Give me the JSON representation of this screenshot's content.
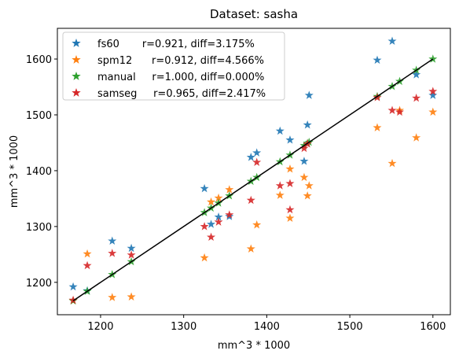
{
  "chart_data": {
    "type": "scatter",
    "title": "Dataset: sasha",
    "xlabel": "mm^3 * 1000",
    "ylabel": "mm^3 * 1000",
    "xlim": [
      1148,
      1621
    ],
    "ylim": [
      1142,
      1655
    ],
    "xticks": [
      1200,
      1300,
      1400,
      1500,
      1600
    ],
    "yticks": [
      1200,
      1300,
      1400,
      1500,
      1600
    ],
    "grid": false,
    "legend_position": "top-left",
    "marker": "star",
    "series": [
      {
        "name": "fs60",
        "legend_label": "fs60       r=0.921, diff=3.175%",
        "color": "#1f77b4",
        "points": [
          [
            1167,
            1192
          ],
          [
            1184,
            1185
          ],
          [
            1214,
            1274
          ],
          [
            1237,
            1261
          ],
          [
            1325,
            1368
          ],
          [
            1333,
            1304
          ],
          [
            1342,
            1317
          ],
          [
            1355,
            1318
          ],
          [
            1381,
            1424
          ],
          [
            1388,
            1432
          ],
          [
            1416,
            1471
          ],
          [
            1428,
            1455
          ],
          [
            1445,
            1417
          ],
          [
            1449,
            1482
          ],
          [
            1451,
            1535
          ],
          [
            1533,
            1598
          ],
          [
            1551,
            1632
          ],
          [
            1580,
            1572
          ],
          [
            1600,
            1535
          ]
        ]
      },
      {
        "name": "spm12",
        "legend_label": "spm12      r=0.912, diff=4.566%",
        "color": "#ff7f0e",
        "points": [
          [
            1167,
            1167
          ],
          [
            1184,
            1251
          ],
          [
            1214,
            1173
          ],
          [
            1237,
            1174
          ],
          [
            1325,
            1244
          ],
          [
            1333,
            1344
          ],
          [
            1342,
            1351
          ],
          [
            1355,
            1366
          ],
          [
            1381,
            1260
          ],
          [
            1388,
            1303
          ],
          [
            1416,
            1356
          ],
          [
            1428,
            1315
          ],
          [
            1428,
            1403
          ],
          [
            1445,
            1388
          ],
          [
            1449,
            1355
          ],
          [
            1451,
            1373
          ],
          [
            1533,
            1477
          ],
          [
            1551,
            1413
          ],
          [
            1560,
            1508
          ],
          [
            1580,
            1459
          ],
          [
            1600,
            1505
          ]
        ]
      },
      {
        "name": "manual",
        "legend_label": "manual     r=1.000, diff=0.000%",
        "color": "#2ca02c",
        "points": [
          [
            1167,
            1167
          ],
          [
            1184,
            1184
          ],
          [
            1214,
            1214
          ],
          [
            1237,
            1237
          ],
          [
            1325,
            1325
          ],
          [
            1333,
            1333
          ],
          [
            1342,
            1342
          ],
          [
            1355,
            1355
          ],
          [
            1381,
            1381
          ],
          [
            1388,
            1388
          ],
          [
            1416,
            1416
          ],
          [
            1428,
            1428
          ],
          [
            1445,
            1445
          ],
          [
            1449,
            1449
          ],
          [
            1451,
            1451
          ],
          [
            1533,
            1533
          ],
          [
            1551,
            1551
          ],
          [
            1560,
            1560
          ],
          [
            1580,
            1580
          ],
          [
            1600,
            1600
          ]
        ]
      },
      {
        "name": "samseg",
        "legend_label": "samseg     r=0.965, diff=2.417%",
        "color": "#d62728",
        "points": [
          [
            1167,
            1168
          ],
          [
            1184,
            1230
          ],
          [
            1214,
            1252
          ],
          [
            1237,
            1249
          ],
          [
            1325,
            1300
          ],
          [
            1333,
            1281
          ],
          [
            1342,
            1308
          ],
          [
            1355,
            1321
          ],
          [
            1381,
            1347
          ],
          [
            1388,
            1415
          ],
          [
            1416,
            1373
          ],
          [
            1428,
            1377
          ],
          [
            1428,
            1330
          ],
          [
            1445,
            1440
          ],
          [
            1449,
            1448
          ],
          [
            1533,
            1531
          ],
          [
            1551,
            1508
          ],
          [
            1560,
            1505
          ],
          [
            1580,
            1530
          ],
          [
            1600,
            1542
          ]
        ]
      }
    ],
    "identity_line": {
      "color": "#000000",
      "x": [
        1167,
        1600
      ],
      "y": [
        1167,
        1600
      ]
    }
  }
}
